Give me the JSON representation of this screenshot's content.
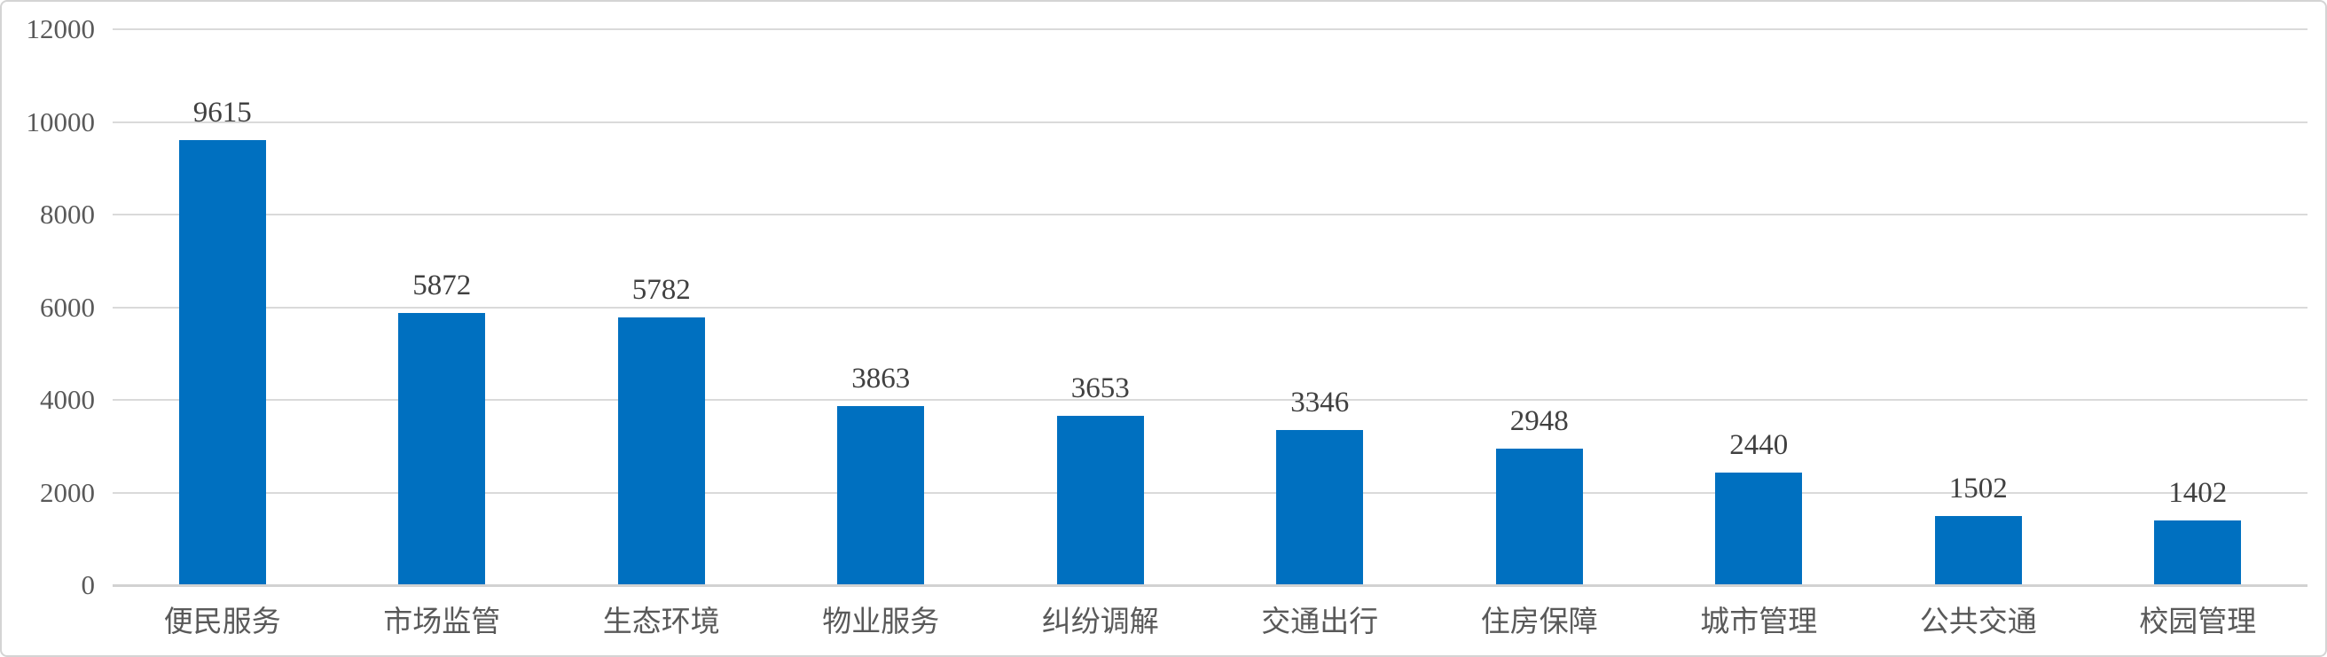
{
  "chart_data": {
    "type": "bar",
    "categories": [
      "便民服务",
      "市场监管",
      "生态环境",
      "物业服务",
      "纠纷调解",
      "交通出行",
      "住房保障",
      "城市管理",
      "公共交通",
      "校园管理"
    ],
    "values": [
      9615,
      5872,
      5782,
      3863,
      3653,
      3346,
      2948,
      2440,
      1502,
      1402
    ],
    "data_labels": [
      "9615",
      "5872",
      "5782",
      "3863",
      "3653",
      "3346",
      "2948",
      "2440",
      "1502",
      "1402"
    ],
    "title": "",
    "xlabel": "",
    "ylabel": "",
    "ylim": [
      0,
      12000
    ],
    "yticks": [
      0,
      2000,
      4000,
      6000,
      8000,
      10000,
      12000
    ],
    "ytick_labels": [
      "0",
      "2000",
      "4000",
      "6000",
      "8000",
      "10000",
      "12000"
    ],
    "grid": true,
    "legend": false,
    "bar_color": "#0070C0",
    "value_label_color": "#404040",
    "axis_text_color": "#595959",
    "gridline_color": "#DADADA",
    "axis_line_color": "#D2D2D2",
    "background_color": "#FFFFFF",
    "frame_border_color": "#D4D4D4"
  }
}
